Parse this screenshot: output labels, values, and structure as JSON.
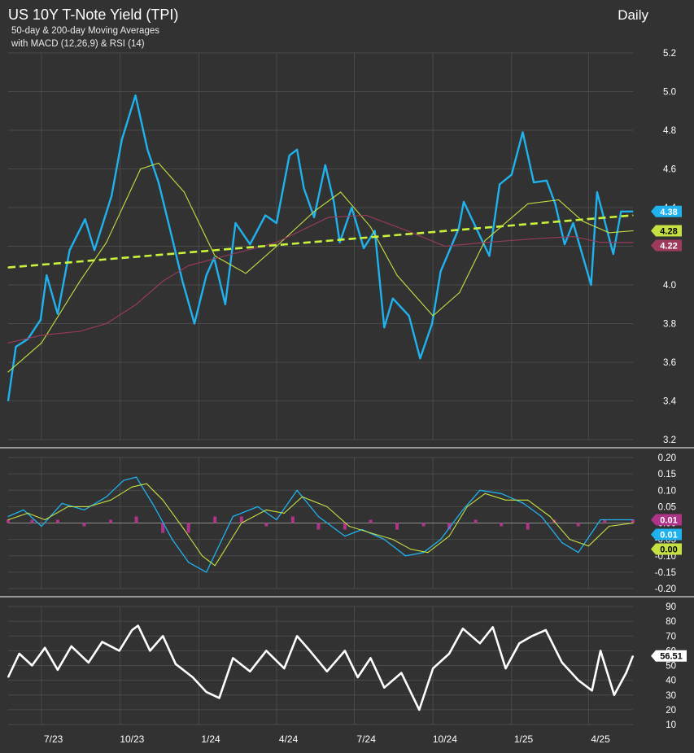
{
  "header": {
    "title": "US 10Y T-Note Yield (TPI)",
    "subtitle_line1": "50-day & 200-day Moving Averages",
    "subtitle_line2": "with MACD (12,26,9) & RSI (14)",
    "frequency": "Daily"
  },
  "colors": {
    "background": "#323232",
    "grid": "#4a4a4a",
    "price": "#1fb2ee",
    "ma50": "#c4e043",
    "ma200": "#9e3b5c",
    "trendline": "#c9f23c",
    "macd": "#1fb2ee",
    "signal": "#c4e043",
    "histogram": "#b0338a",
    "rsi": "#ffffff"
  },
  "x_axis": {
    "tick_labels": [
      "7/23",
      "10/23",
      "1/24",
      "4/24",
      "7/24",
      "10/24",
      "1/25",
      "4/25"
    ]
  },
  "chart_data": [
    {
      "type": "line",
      "panel": "price",
      "title": "US 10Y T-Note Yield (TPI)",
      "x_range": [
        "2023-05-23",
        "2025-05-23"
      ],
      "ylim": [
        3.2,
        5.2
      ],
      "yticks": [
        "5.2",
        "5.0",
        "4.8",
        "4.6",
        "4.4",
        "4.2",
        "4.0",
        "3.8",
        "3.6",
        "3.4",
        "3.2"
      ],
      "grid": true,
      "series": [
        {
          "name": "US 10Y T-Note Yield",
          "role": "price",
          "x": [
            "2023-05-23",
            "2023-06-01",
            "2023-06-15",
            "2023-06-30",
            "2023-07-07",
            "2023-07-20",
            "2023-08-03",
            "2023-08-21",
            "2023-09-01",
            "2023-09-21",
            "2023-10-03",
            "2023-10-19",
            "2023-11-02",
            "2023-11-15",
            "2023-12-01",
            "2023-12-13",
            "2023-12-27",
            "2024-01-10",
            "2024-01-19",
            "2024-02-01",
            "2024-02-13",
            "2024-03-01",
            "2024-03-19",
            "2024-04-01",
            "2024-04-16",
            "2024-04-25",
            "2024-05-03",
            "2024-05-15",
            "2024-05-28",
            "2024-06-07",
            "2024-06-14",
            "2024-06-28",
            "2024-07-12",
            "2024-07-25",
            "2024-08-05",
            "2024-08-15",
            "2024-09-03",
            "2024-09-16",
            "2024-09-30",
            "2024-10-10",
            "2024-10-31",
            "2024-11-06",
            "2024-12-06",
            "2024-12-18",
            "2025-01-01",
            "2025-01-14",
            "2025-01-27",
            "2025-02-11",
            "2025-02-21",
            "2025-03-04",
            "2025-03-14",
            "2025-04-04",
            "2025-04-11",
            "2025-04-30",
            "2025-05-09",
            "2025-05-23"
          ],
          "values": [
            3.4,
            3.68,
            3.72,
            3.82,
            4.05,
            3.85,
            4.18,
            4.34,
            4.18,
            4.46,
            4.75,
            4.98,
            4.7,
            4.53,
            4.24,
            4.02,
            3.8,
            4.05,
            4.14,
            3.9,
            4.32,
            4.21,
            4.36,
            4.32,
            4.67,
            4.7,
            4.5,
            4.35,
            4.62,
            4.43,
            4.22,
            4.4,
            4.19,
            4.28,
            3.78,
            3.93,
            3.84,
            3.62,
            3.8,
            4.07,
            4.29,
            4.43,
            4.15,
            4.52,
            4.57,
            4.79,
            4.53,
            4.54,
            4.42,
            4.21,
            4.32,
            4.0,
            4.48,
            4.16,
            4.38,
            4.38
          ]
        },
        {
          "name": "50-day MA",
          "role": "ma50",
          "x": [
            "2023-05-23",
            "2023-07-01",
            "2023-08-15",
            "2023-09-15",
            "2023-10-25",
            "2023-11-15",
            "2023-12-15",
            "2024-01-20",
            "2024-02-25",
            "2024-04-01",
            "2024-05-15",
            "2024-06-15",
            "2024-07-20",
            "2024-08-20",
            "2024-09-15",
            "2024-10-01",
            "2024-11-01",
            "2024-12-01",
            "2025-01-20",
            "2025-02-25",
            "2025-03-25",
            "2025-04-25",
            "2025-05-23"
          ],
          "values": [
            3.55,
            3.7,
            4.02,
            4.22,
            4.6,
            4.63,
            4.48,
            4.15,
            4.06,
            4.2,
            4.38,
            4.48,
            4.3,
            4.05,
            3.92,
            3.84,
            3.96,
            4.23,
            4.42,
            4.44,
            4.33,
            4.27,
            4.28
          ]
        },
        {
          "name": "200-day MA",
          "role": "ma200",
          "x": [
            "2023-05-23",
            "2023-07-01",
            "2023-08-15",
            "2023-09-15",
            "2023-10-20",
            "2023-11-20",
            "2023-12-20",
            "2024-02-01",
            "2024-04-01",
            "2024-06-01",
            "2024-07-15",
            "2024-09-01",
            "2024-10-15",
            "2024-12-01",
            "2025-02-01",
            "2025-03-15",
            "2025-04-15",
            "2025-05-23"
          ],
          "values": [
            3.7,
            3.74,
            3.76,
            3.8,
            3.9,
            4.02,
            4.1,
            4.15,
            4.22,
            4.35,
            4.36,
            4.28,
            4.2,
            4.22,
            4.24,
            4.25,
            4.22,
            4.22
          ]
        },
        {
          "name": "Trendline",
          "role": "trendline",
          "x": [
            "2023-05-23",
            "2025-05-23"
          ],
          "values": [
            4.09,
            4.36
          ]
        }
      ],
      "last_values": [
        {
          "label": "4.38",
          "value": 4.38,
          "color": "#1fb2ee"
        },
        {
          "label": "4.28",
          "value": 4.28,
          "color": "#c4e043"
        },
        {
          "label": "4.22",
          "value": 4.22,
          "color": "#9e3b5c"
        }
      ]
    },
    {
      "type": "line",
      "panel": "macd",
      "title": "MACD (12,26,9)",
      "x_range": [
        "2023-05-23",
        "2025-05-23"
      ],
      "ylim": [
        -0.2,
        0.2
      ],
      "yticks": [
        "0.20",
        "0.15",
        "0.10",
        "0.05",
        "0.00",
        "-0.05",
        "-0.10",
        "-0.15",
        "-0.20"
      ],
      "grid": true,
      "series": [
        {
          "name": "MACD",
          "role": "macd",
          "x": [
            "2023-05-23",
            "2023-06-10",
            "2023-07-01",
            "2023-07-25",
            "2023-08-20",
            "2023-09-15",
            "2023-10-05",
            "2023-10-20",
            "2023-11-10",
            "2023-12-01",
            "2023-12-20",
            "2024-01-10",
            "2024-02-10",
            "2024-03-10",
            "2024-04-01",
            "2024-04-25",
            "2024-05-20",
            "2024-06-20",
            "2024-07-10",
            "2024-08-05",
            "2024-08-30",
            "2024-09-20",
            "2024-10-10",
            "2024-11-05",
            "2024-11-25",
            "2024-12-20",
            "2025-01-15",
            "2025-02-05",
            "2025-03-01",
            "2025-03-20",
            "2025-04-15",
            "2025-05-23"
          ],
          "values": [
            0.02,
            0.04,
            -0.01,
            0.06,
            0.04,
            0.08,
            0.13,
            0.14,
            0.05,
            -0.05,
            -0.12,
            -0.15,
            0.02,
            0.05,
            0.01,
            0.1,
            0.02,
            -0.04,
            -0.02,
            -0.05,
            -0.1,
            -0.09,
            -0.05,
            0.04,
            0.1,
            0.09,
            0.06,
            0.02,
            -0.06,
            -0.09,
            0.01,
            0.01
          ]
        },
        {
          "name": "Signal",
          "role": "signal",
          "x": [
            "2023-05-23",
            "2023-06-15",
            "2023-07-05",
            "2023-08-01",
            "2023-08-25",
            "2023-09-20",
            "2023-10-15",
            "2023-11-01",
            "2023-11-20",
            "2023-12-15",
            "2024-01-05",
            "2024-01-20",
            "2024-02-20",
            "2024-03-20",
            "2024-04-10",
            "2024-05-01",
            "2024-05-30",
            "2024-06-25",
            "2024-07-20",
            "2024-08-15",
            "2024-09-05",
            "2024-09-25",
            "2024-10-20",
            "2024-11-10",
            "2024-12-01",
            "2024-12-25",
            "2025-01-20",
            "2025-02-15",
            "2025-03-10",
            "2025-04-01",
            "2025-04-25",
            "2025-05-23"
          ],
          "values": [
            0.01,
            0.03,
            0.01,
            0.05,
            0.05,
            0.07,
            0.11,
            0.12,
            0.07,
            -0.02,
            -0.1,
            -0.13,
            0.0,
            0.04,
            0.03,
            0.08,
            0.05,
            -0.01,
            -0.03,
            -0.05,
            -0.08,
            -0.09,
            -0.04,
            0.05,
            0.09,
            0.07,
            0.07,
            0.02,
            -0.05,
            -0.07,
            -0.01,
            0.0
          ]
        },
        {
          "name": "Histogram",
          "role": "histogram",
          "x": [
            "2023-05-23",
            "2023-06-20",
            "2023-07-20",
            "2023-08-20",
            "2023-09-20",
            "2023-10-20",
            "2023-11-20",
            "2023-12-20",
            "2024-01-20",
            "2024-02-20",
            "2024-03-20",
            "2024-04-20",
            "2024-05-20",
            "2024-06-20",
            "2024-07-20",
            "2024-08-20",
            "2024-09-20",
            "2024-10-20",
            "2024-11-20",
            "2024-12-20",
            "2025-01-20",
            "2025-02-20",
            "2025-03-20",
            "2025-04-20",
            "2025-05-23"
          ],
          "values": [
            0.01,
            0.01,
            0.01,
            -0.01,
            0.01,
            0.02,
            -0.03,
            -0.03,
            0.02,
            0.02,
            -0.01,
            0.02,
            -0.02,
            -0.02,
            0.01,
            -0.02,
            -0.01,
            -0.02,
            0.01,
            -0.01,
            -0.02,
            0.01,
            -0.01,
            0.01,
            0.01
          ]
        }
      ],
      "last_values": [
        {
          "label": "0.01",
          "value": 0.01,
          "color": "#b0338a"
        },
        {
          "label": "0.01",
          "value": 0.01,
          "color": "#1fb2ee"
        },
        {
          "label": "0.00",
          "value": 0.0,
          "color": "#c4e043"
        }
      ]
    },
    {
      "type": "line",
      "panel": "rsi",
      "title": "RSI (14)",
      "x_range": [
        "2023-05-23",
        "2025-05-23"
      ],
      "ylim": [
        10,
        90
      ],
      "yticks": [
        "90",
        "80",
        "70",
        "60",
        "50",
        "40",
        "30",
        "20",
        "10"
      ],
      "grid": true,
      "series": [
        {
          "name": "RSI",
          "role": "rsi",
          "x": [
            "2023-05-23",
            "2023-06-05",
            "2023-06-20",
            "2023-07-05",
            "2023-07-20",
            "2023-08-05",
            "2023-08-25",
            "2023-09-10",
            "2023-09-30",
            "2023-10-15",
            "2023-10-22",
            "2023-11-05",
            "2023-11-20",
            "2023-12-05",
            "2023-12-25",
            "2024-01-10",
            "2024-01-25",
            "2024-02-10",
            "2024-03-01",
            "2024-03-20",
            "2024-04-10",
            "2024-04-25",
            "2024-05-10",
            "2024-05-30",
            "2024-06-20",
            "2024-07-05",
            "2024-07-20",
            "2024-08-05",
            "2024-08-25",
            "2024-09-15",
            "2024-10-01",
            "2024-10-20",
            "2024-11-05",
            "2024-11-25",
            "2024-12-10",
            "2024-12-25",
            "2025-01-10",
            "2025-01-25",
            "2025-02-10",
            "2025-03-01",
            "2025-03-20",
            "2025-04-05",
            "2025-04-15",
            "2025-05-01",
            "2025-05-15",
            "2025-05-23"
          ],
          "values": [
            42,
            58,
            50,
            62,
            47,
            63,
            52,
            66,
            60,
            74,
            77,
            60,
            70,
            51,
            42,
            32,
            28,
            55,
            46,
            60,
            48,
            70,
            60,
            46,
            60,
            42,
            55,
            35,
            45,
            20,
            48,
            58,
            75,
            65,
            76,
            48,
            65,
            70,
            74,
            52,
            40,
            33,
            60,
            30,
            45,
            56.51
          ]
        }
      ],
      "last_values": [
        {
          "label": "56.51",
          "value": 56.51,
          "color": "#ffffff"
        }
      ]
    }
  ]
}
